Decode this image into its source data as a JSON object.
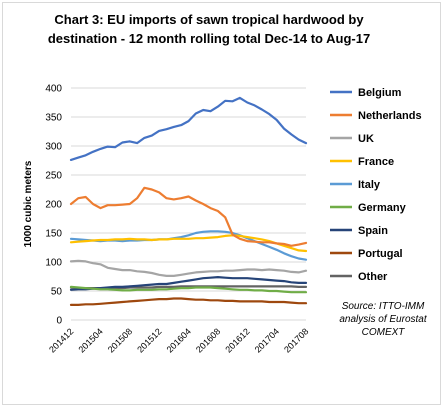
{
  "chart_data": {
    "type": "line",
    "title": "Chart 3: EU imports of sawn tropical hardwood by destination - 12 month rolling total Dec-14 to Aug-17",
    "ylabel": "1000 cubic meters",
    "xlabel": "",
    "ylim": [
      0,
      400
    ],
    "yticks": [
      0,
      50,
      100,
      150,
      200,
      250,
      300,
      350,
      400
    ],
    "x": [
      "201412",
      "201501",
      "201502",
      "201503",
      "201504",
      "201505",
      "201506",
      "201507",
      "201508",
      "201509",
      "201510",
      "201511",
      "201512",
      "201601",
      "201602",
      "201603",
      "201604",
      "201605",
      "201606",
      "201607",
      "201608",
      "201609",
      "201610",
      "201611",
      "201612",
      "201701",
      "201702",
      "201703",
      "201704",
      "201705",
      "201706",
      "201707",
      "201708"
    ],
    "xtick_labels": [
      "201412",
      "201504",
      "201508",
      "201512",
      "201604",
      "201608",
      "201612",
      "201704",
      "201708"
    ],
    "grid": "horizontal",
    "legend_position": "right",
    "series": [
      {
        "name": "Belgium",
        "color": "#4472c4",
        "values": [
          276,
          280,
          284,
          290,
          295,
          299,
          298,
          306,
          308,
          305,
          314,
          318,
          326,
          329,
          333,
          336,
          343,
          356,
          362,
          360,
          368,
          378,
          377,
          383,
          375,
          370,
          363,
          355,
          345,
          330,
          320,
          311,
          305
        ]
      },
      {
        "name": "Netherlands",
        "color": "#ed7d31",
        "values": [
          200,
          210,
          212,
          200,
          193,
          198,
          198,
          199,
          200,
          210,
          228,
          225,
          220,
          210,
          208,
          210,
          213,
          206,
          200,
          193,
          188,
          177,
          147,
          140,
          136,
          135,
          134,
          134,
          132,
          131,
          128,
          130,
          133
        ]
      },
      {
        "name": "UK",
        "color": "#a5a5a5",
        "values": [
          101,
          102,
          101,
          98,
          96,
          90,
          88,
          86,
          86,
          84,
          83,
          81,
          78,
          76,
          76,
          78,
          80,
          82,
          83,
          84,
          84,
          85,
          85,
          86,
          87,
          87,
          86,
          87,
          86,
          85,
          83,
          82,
          85
        ]
      },
      {
        "name": "France",
        "color": "#ffc000",
        "values": [
          134,
          135,
          136,
          137,
          138,
          138,
          139,
          139,
          140,
          139,
          139,
          138,
          139,
          139,
          140,
          140,
          140,
          141,
          141,
          142,
          143,
          145,
          146,
          145,
          143,
          141,
          139,
          136,
          132,
          128,
          124,
          120,
          119
        ]
      },
      {
        "name": "Italy",
        "color": "#5b9bd5",
        "values": [
          140,
          139,
          138,
          137,
          136,
          137,
          137,
          136,
          137,
          137,
          138,
          138,
          139,
          139,
          141,
          143,
          146,
          150,
          152,
          153,
          153,
          152,
          150,
          146,
          141,
          136,
          131,
          126,
          121,
          115,
          110,
          106,
          104
        ]
      },
      {
        "name": "Germany",
        "color": "#70ad47",
        "values": [
          57,
          56,
          55,
          54,
          53,
          53,
          52,
          51,
          51,
          52,
          52,
          52,
          53,
          53,
          54,
          55,
          55,
          56,
          56,
          56,
          55,
          54,
          53,
          52,
          52,
          51,
          51,
          50,
          50,
          49,
          48,
          48,
          48
        ]
      },
      {
        "name": "Spain",
        "color": "#264478",
        "values": [
          52,
          53,
          53,
          54,
          55,
          56,
          57,
          57,
          58,
          59,
          60,
          61,
          62,
          62,
          64,
          66,
          68,
          70,
          72,
          73,
          74,
          73,
          72,
          72,
          72,
          71,
          70,
          69,
          68,
          67,
          65,
          64,
          64
        ]
      },
      {
        "name": "Portugal",
        "color": "#9e480e",
        "values": [
          26,
          26,
          27,
          27,
          28,
          29,
          30,
          31,
          32,
          33,
          34,
          35,
          36,
          36,
          37,
          37,
          36,
          35,
          35,
          34,
          34,
          33,
          33,
          32,
          32,
          32,
          32,
          31,
          31,
          31,
          30,
          29,
          29
        ]
      },
      {
        "name": "Other",
        "color": "#636363",
        "values": [
          56,
          55,
          55,
          55,
          55,
          55,
          55,
          55,
          56,
          56,
          56,
          56,
          57,
          57,
          57,
          58,
          58,
          58,
          58,
          58,
          58,
          58,
          58,
          58,
          58,
          58,
          58,
          58,
          58,
          58,
          58,
          57,
          57
        ]
      }
    ],
    "annotation": "Source: ITTO-IMM analysis of Eurostat COMEXT"
  }
}
